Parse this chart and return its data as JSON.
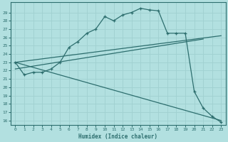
{
  "xlabel": "Humidex (Indice chaleur)",
  "bg_color": "#b2e0e0",
  "line_color": "#2d6e6e",
  "grid_color": "#a0d0d0",
  "ylim": [
    15.5,
    30.2
  ],
  "xlim": [
    -0.5,
    23.5
  ],
  "yticks": [
    16,
    17,
    18,
    19,
    20,
    21,
    22,
    23,
    24,
    25,
    26,
    27,
    28,
    29
  ],
  "xticks": [
    0,
    1,
    2,
    3,
    4,
    5,
    6,
    7,
    8,
    9,
    10,
    11,
    12,
    13,
    14,
    15,
    16,
    17,
    18,
    19,
    20,
    21,
    22,
    23
  ],
  "line1_x": [
    0,
    1,
    2,
    3,
    4,
    5,
    6,
    7,
    8,
    9,
    10,
    11,
    12,
    13,
    14,
    15,
    16,
    17,
    18,
    19,
    20,
    21,
    22,
    23
  ],
  "line1_y": [
    23.0,
    21.5,
    21.8,
    21.8,
    22.2,
    23.0,
    24.8,
    25.5,
    26.5,
    27.0,
    28.5,
    28.0,
    28.7,
    29.0,
    29.5,
    29.3,
    29.2,
    26.5,
    26.5,
    26.5,
    19.5,
    17.5,
    16.5,
    15.8
  ],
  "line2_x": [
    0,
    23
  ],
  "line2_y": [
    23.0,
    26.2
  ],
  "line3_x": [
    0,
    23
  ],
  "line3_y": [
    23.0,
    16.0
  ],
  "line4_x": [
    0,
    21
  ],
  "line4_y": [
    22.2,
    25.8
  ]
}
